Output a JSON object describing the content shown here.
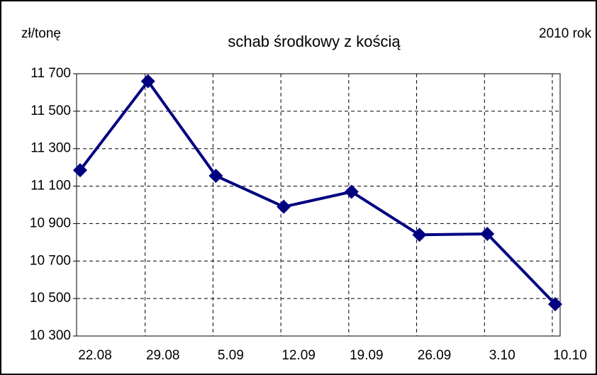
{
  "chart_data": {
    "type": "line",
    "title": "schab środkowy z kością",
    "y_label": "zł/tonę",
    "annotation": "2010 rok",
    "categories": [
      "22.08",
      "29.08",
      "5.09",
      "12.09",
      "19.09",
      "26.09",
      "3.10",
      "10.10"
    ],
    "series": [
      {
        "name": "schab środkowy z kością",
        "color": "#000080",
        "values": [
          11185,
          11660,
          11155,
          10990,
          11070,
          10840,
          10845,
          10470
        ]
      }
    ],
    "ylim": [
      10300,
      11700
    ],
    "yticks": [
      {
        "value": 10300,
        "label": "10 300"
      },
      {
        "value": 10500,
        "label": "10 500"
      },
      {
        "value": 10700,
        "label": "10 700"
      },
      {
        "value": 10900,
        "label": "10 900"
      },
      {
        "value": 11100,
        "label": "11 100"
      },
      {
        "value": 11300,
        "label": "11 300"
      },
      {
        "value": 11500,
        "label": "11 500"
      },
      {
        "value": 11700,
        "label": "11 700"
      }
    ],
    "grid": true
  }
}
